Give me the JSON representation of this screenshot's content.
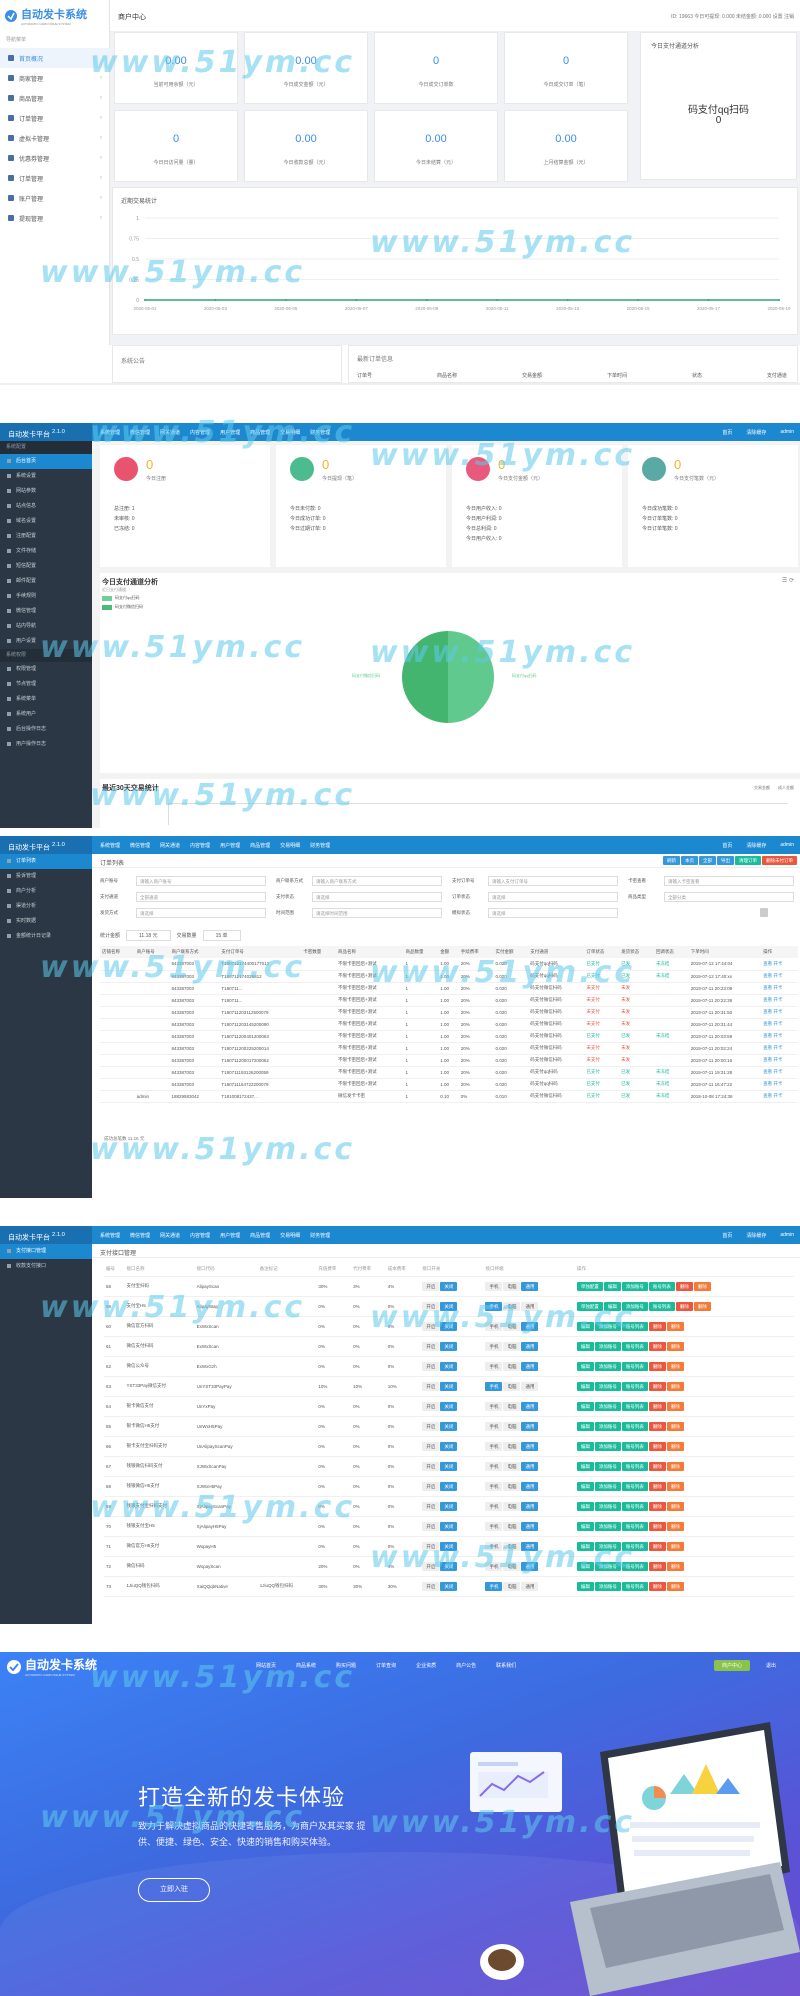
{
  "watermark": "www.51ym.cc",
  "p1": {
    "logo": "自动发卡系统",
    "logo_sub": "AUTOMATIC CARD ISSUE SYSTEM",
    "side_title": "导航菜单",
    "menu": [
      {
        "label": "首页概况"
      },
      {
        "label": "商家管理"
      },
      {
        "label": "商品管理"
      },
      {
        "label": "订单管理"
      },
      {
        "label": "虚拟卡管理"
      },
      {
        "label": "优惠券管理"
      },
      {
        "label": "订单管理"
      },
      {
        "label": "账户管理"
      },
      {
        "label": "提现管理"
      }
    ],
    "top_title": "商户中心",
    "top_right": "ID: 19663  今日可提现: 0.000  未结金额: 0.000  设置  注销",
    "cards": [
      {
        "value": "0.00",
        "label": "当前可用余额（元）"
      },
      {
        "value": "0.00",
        "label": "今日成交金额（元）"
      },
      {
        "value": "0",
        "label": "今日成交订单数"
      },
      {
        "value": "0",
        "label": "今日成交订单（笔）"
      },
      {
        "value": "0",
        "label": "今日日访问量（量）"
      },
      {
        "value": "0.00",
        "label": "今日收款总额（元）"
      },
      {
        "value": "0.00",
        "label": "今日未结算（元）"
      },
      {
        "value": "0.00",
        "label": "上月结算金额（元）"
      }
    ],
    "pay_title": "今日支付通道分析",
    "pay_name": "码支付qq扫码",
    "pay_value": "0",
    "chart_title": "近期交易统计",
    "notice_title": "系统公告",
    "order_title": "最新订单信息",
    "order_cols": [
      "订单号",
      "商品名称",
      "交易金额",
      "下单时间",
      "状态",
      "支付通道"
    ]
  },
  "chart_data": {
    "type": "line",
    "title": "近期交易统计",
    "x": [
      "2020-05-01",
      "2020-05-03",
      "2020-05-05",
      "2020-05-07",
      "2020-05-09",
      "2020-05-11",
      "2020-05-13",
      "2020-05-15",
      "2020-05-17",
      "2020-05-19"
    ],
    "series": [
      {
        "values": [
          0,
          0,
          0,
          0,
          0,
          0,
          0,
          0,
          0,
          0
        ]
      }
    ],
    "yticks": [
      "1",
      "0.75",
      "0.5",
      "0.25",
      "0"
    ],
    "ylim": [
      0,
      1
    ]
  },
  "admin": {
    "brand": "自动发卡平台",
    "ver": "2.1.0",
    "nav": [
      "系统管理",
      "微信管理",
      "网关通道",
      "内容管理",
      "用户管理",
      "商品管理",
      "交易明细",
      "财务管理"
    ],
    "right": [
      "首页",
      "清除缓存",
      "admin"
    ]
  },
  "p2": {
    "side": [
      {
        "label": "系统配置",
        "grp": true
      },
      {
        "label": "后台首页",
        "act": true
      },
      {
        "label": "系统设置"
      },
      {
        "label": "网站参数"
      },
      {
        "label": "站点信息"
      },
      {
        "label": "域名设置"
      },
      {
        "label": "注册配置"
      },
      {
        "label": "文件存储"
      },
      {
        "label": "短信配置"
      },
      {
        "label": "邮件配置"
      },
      {
        "label": "手续规则"
      },
      {
        "label": "微信管理"
      },
      {
        "label": "站内导航"
      },
      {
        "label": "用户设置"
      },
      {
        "label": "系统权限",
        "grp": true
      },
      {
        "label": "权限管理"
      },
      {
        "label": "节点管理"
      },
      {
        "label": "系统菜单"
      },
      {
        "label": "系统用户"
      },
      {
        "label": "后台操作日志"
      },
      {
        "label": "用户操作日志"
      }
    ],
    "stats": [
      {
        "value": "0",
        "label": "今日注册",
        "rows": [
          "总注册: 1",
          "未审核: 0",
          "已冻结: 0"
        ]
      },
      {
        "value": "0",
        "label": "今日提现（笔）",
        "rows": [
          "今日未付款: 0",
          "今日成功订单: 0",
          "今日过期订单: 0"
        ]
      },
      {
        "value": "0",
        "label": "今日支付金额（元）",
        "rows": [
          "今日用户收入: 0",
          "今日用户利润: 0",
          "今日总利润: 0",
          "今日用户收入: 0"
        ]
      },
      {
        "value": "0",
        "label": "今日支付笔数（元）",
        "rows": [
          "今日成功笔数: 0",
          "今日订单笔数: 0",
          "今日订单笔数: 0"
        ]
      }
    ],
    "pie_title": "今日支付通道分析",
    "pie_sub": "近日支付通道",
    "legend": [
      "码支付qq扫码",
      "码支付微信扫码"
    ],
    "pie_left": "码支付微信扫码",
    "pie_right": "码支付qq扫码",
    "bottom_title": "最近30天交易统计",
    "bottom_legend": [
      "交易金额",
      "成人金额"
    ]
  },
  "p3": {
    "side": [
      {
        "label": "订单列表",
        "act": true
      },
      {
        "label": "投诉管理"
      },
      {
        "label": "商户分析"
      },
      {
        "label": "渠道分析"
      },
      {
        "label": "实时数据"
      },
      {
        "label": "金额统计日记录"
      }
    ],
    "crumb": "订单列表",
    "tools": [
      "刷新",
      "本页",
      "全部",
      "导出",
      "清理订单",
      "删除未付订单"
    ],
    "filters": [
      {
        "label": "商户账号",
        "ph": "请输入商户账号"
      },
      {
        "label": "商户联系方式",
        "ph": "请输入商户联系方式"
      },
      {
        "label": "支付订单号",
        "ph": "请输入支付订单号"
      },
      {
        "label": "卡密查看",
        "ph": "请输入卡密查看"
      },
      {
        "label": "支付通道",
        "ph": "全部通道"
      },
      {
        "label": "支付状态",
        "ph": "请选择"
      },
      {
        "label": "订单状态",
        "ph": "请选择"
      },
      {
        "label": "商品类型",
        "ph": "全部分类"
      },
      {
        "label": "发货方式",
        "ph": "请选择"
      },
      {
        "label": "时间范围",
        "ph": "请选择时间范围"
      },
      {
        "label": "模拟状态",
        "ph": "请选择"
      }
    ],
    "sum_label": "统计金额",
    "sum_val": "11.18 元",
    "cnt_label": "交易数量",
    "cnt_val": "15 单",
    "cols": [
      "店铺名称",
      "商户账号",
      "商户联系方式",
      "支付订单号",
      "卡密数量",
      "商品名称",
      "商品数量",
      "金额",
      "手续费率",
      "实付金额",
      "支付通道",
      "订单状态",
      "发货状态",
      "回调状态",
      "下单时间",
      "操作"
    ],
    "rows": [
      [
        "",
        "",
        "843387003",
        "T180712174400177012",
        "",
        "不限卡密回后+测试",
        "1",
        "1.00",
        "20%",
        "0.020",
        "码支付qq扫码",
        "已支付",
        "已发",
        "未冻结",
        "2019-07-12 17:44:04",
        "查看 开卡"
      ],
      [
        "",
        "",
        "843387003",
        "T180712174026812",
        "",
        "不限卡密回后+测试",
        "1",
        "1.00",
        "20%",
        "0.020",
        "码支付qq扫码",
        "已支付",
        "已发",
        "未冻结",
        "2019-07-12 17:40:xx",
        "查看 开卡"
      ],
      [
        "",
        "",
        "843387003",
        "T180711...",
        "",
        "不限卡密回后+测试",
        "1",
        "1.00",
        "20%",
        "0.020",
        "码支付微信扫码",
        "未支付",
        "未发",
        "",
        "2019-07-11 20:23:09",
        "查看 开卡"
      ],
      [
        "",
        "",
        "843387003",
        "T180711...",
        "",
        "不限卡密回后+测试",
        "1",
        "1.00",
        "20%",
        "0.020",
        "码支付微信扫码",
        "未支付",
        "未发",
        "",
        "2019-07-11 20:22:39",
        "查看 开卡"
      ],
      [
        "",
        "",
        "843387003",
        "T180711203112500079",
        "",
        "不限卡密回后+测试",
        "1",
        "1.00",
        "20%",
        "0.020",
        "码支付微信扫码",
        "未支付",
        "未发",
        "",
        "2019-07-11 20:31:50",
        "查看 开卡"
      ],
      [
        "",
        "",
        "843387003",
        "T180711203145200090",
        "",
        "不限卡密回后+测试",
        "1",
        "1.00",
        "20%",
        "0.020",
        "码支付微信扫码",
        "未支付",
        "未发",
        "",
        "2019-07-11 20:31:44",
        "查看 开卡"
      ],
      [
        "",
        "",
        "843387003",
        "T180711200401200063",
        "",
        "不限卡密回后+测试",
        "1",
        "1.00",
        "20%",
        "0.020",
        "码支付微信扫码",
        "已支付",
        "已发",
        "未冻结",
        "2019-07-11 20:03:59",
        "查看 开卡"
      ],
      [
        "",
        "",
        "843387003",
        "T180711200225200014",
        "",
        "不限卡密回后+测试",
        "1",
        "1.00",
        "20%",
        "0.020",
        "码支付微信扫码",
        "未支付",
        "未发",
        "",
        "2019-07-11 20:02:24",
        "查看 开卡"
      ],
      [
        "",
        "",
        "843387003",
        "T180711200017200062",
        "",
        "不限卡密回后+测试",
        "1",
        "1.00",
        "20%",
        "0.020",
        "码支付微信扫码",
        "未支付",
        "未发",
        "",
        "2019-07-11 20:00:16",
        "查看 开卡"
      ],
      [
        "",
        "",
        "843387003",
        "T180711193126200059",
        "",
        "不限卡密回后+测试",
        "1",
        "1.00",
        "20%",
        "0.020",
        "码支付qq扫码",
        "已支付",
        "已发",
        "未冻结",
        "2019-07-11 19:31:28",
        "查看 开卡"
      ],
      [
        "",
        "",
        "843387003",
        "T180711164722200079",
        "",
        "不限卡密回后+测试",
        "1",
        "1.00",
        "20%",
        "0.020",
        "码支付qq扫码",
        "已支付",
        "已发",
        "未冻结",
        "2019-07-11 16:47:22",
        "查看 开卡"
      ],
      [
        "",
        "admin",
        "18829583042",
        "T181008172437...",
        "",
        "微信发卡卡密",
        "1",
        "0.10",
        "0%",
        "0.010",
        "码支付微信扫码",
        "已支付",
        "已发",
        "未冻结",
        "2018-10-08 17:24:36",
        "查看 开卡"
      ]
    ],
    "footer": "成功总笔数 11.16 元"
  },
  "p4": {
    "side": [
      {
        "label": "支付接口管理",
        "act": true
      },
      {
        "label": "收款支付接口"
      }
    ],
    "crumb": "支付接口管理",
    "cols": [
      "编号",
      "接口名称",
      "接口代码",
      "备注标记",
      "充值费率",
      "代付费率",
      "成本费率",
      "接口开关",
      "接口终端",
      "操作"
    ],
    "term": [
      "手机",
      "电脑",
      "通用"
    ],
    "onoff": [
      "开启",
      "关闭"
    ],
    "ops": [
      "单独配置",
      "编辑",
      "添加账号",
      "账号列表",
      "删除"
    ],
    "rows": [
      [
        "58",
        "支付宝扫码",
        "AlipayScan",
        "",
        "30%",
        "3%",
        "4%"
      ],
      [
        "59",
        "支付宝H5",
        "AlipayWap",
        "",
        "0%",
        "0%",
        "0%"
      ],
      [
        "60",
        "微信官方扫码",
        "ExWxScan",
        "",
        "0%",
        "0%",
        "0%"
      ],
      [
        "61",
        "微信支付扫码",
        "ExWxScan",
        "",
        "0%",
        "0%",
        "0%"
      ],
      [
        "62",
        "微信公众号",
        "ExWxGzh",
        "",
        "0%",
        "0%",
        "0%"
      ],
      [
        "63",
        "YST33Pay微信支付",
        "UnYST33PayPay",
        "",
        "10%",
        "10%",
        "10%"
      ],
      [
        "64",
        "银卡微信支付",
        "UnYxPay",
        "",
        "0%",
        "0%",
        "0%"
      ],
      [
        "65",
        "银卡微信H5支付",
        "UnWxH5Pay",
        "",
        "0%",
        "0%",
        "0%"
      ],
      [
        "66",
        "银卡支付宝扫码支付",
        "UnAlipayScanPay",
        "",
        "0%",
        "0%",
        "0%"
      ],
      [
        "67",
        "钱银微信扫码支付",
        "XJWxScanPay",
        "",
        "0%",
        "0%",
        "0%"
      ],
      [
        "68",
        "钱银微信H5支付",
        "XJWxH5Pay",
        "",
        "0%",
        "0%",
        "0%"
      ],
      [
        "69",
        "钱银支付宝扫码支付",
        "XjAlipayScanPay",
        "",
        "0%",
        "0%",
        "0%"
      ],
      [
        "70",
        "钱银支付宝H5",
        "XjAlipayH5Pay",
        "",
        "0%",
        "0%",
        "0%"
      ],
      [
        "71",
        "微信官方H5支付",
        "WxpayH5",
        "",
        "0%",
        "0%",
        "0%"
      ],
      [
        "72",
        "微信扫码",
        "WxpayScan",
        "",
        "20%",
        "0%",
        "4%"
      ],
      [
        "73",
        "1JiuQQ钱包扫码",
        "XaiQQqbNative",
        "1JiuQQ钱包扫码",
        "30%",
        "30%",
        "30%"
      ]
    ]
  },
  "p5": {
    "logo": "自动发卡系统",
    "logo_sub": "AUTOMATIC CARD ISSUE SYSTEM",
    "nav": [
      "网站首页",
      "商品系统",
      "购买问题",
      "订单查询",
      "企业资质",
      "商户公告",
      "联系我们"
    ],
    "login": "商户中心",
    "reg": "退出",
    "title": "打造全新的发卡体验",
    "desc": "致力于解决虚拟商品的快捷寄售服务，为商户及其买家 提供、便捷、绿色、安全、快速的销售和购买体验。",
    "cta": "立即入驻"
  }
}
